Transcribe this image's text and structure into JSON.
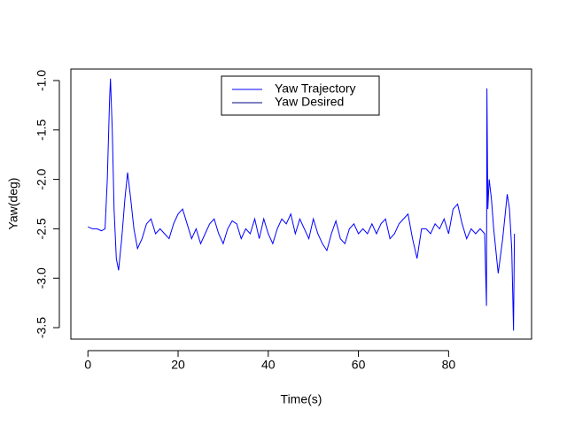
{
  "chart_data": {
    "type": "line",
    "x_label": "Time(s)",
    "y_label": "Yaw(deg)",
    "x": [
      0,
      1,
      2,
      3,
      3.8,
      4.3,
      4.8,
      5.0,
      5.4,
      5.8,
      6.3,
      6.8,
      7.5,
      8.2,
      8.8,
      9.5,
      10.2,
      11,
      12,
      13,
      14,
      15,
      16,
      17,
      18,
      19,
      20,
      21,
      22,
      23,
      24,
      25,
      26,
      27,
      28,
      29,
      30,
      31,
      32,
      33,
      34,
      35,
      36,
      37,
      38,
      39,
      40,
      41,
      42,
      43,
      44,
      45,
      46,
      47,
      48,
      49,
      50,
      51,
      52,
      53,
      54,
      55,
      56,
      57,
      58,
      59,
      60,
      61,
      62,
      63,
      64,
      65,
      66,
      67,
      68,
      69,
      70,
      71,
      72,
      73,
      74,
      75,
      76,
      77,
      78,
      79,
      80,
      81,
      82,
      83,
      84,
      85,
      86,
      87,
      88,
      88.4,
      88.5,
      88.7,
      89,
      89.5,
      90,
      91,
      92,
      93,
      93.5,
      94,
      94.4,
      94.6
    ],
    "series": [
      {
        "name": "Yaw Trajectory",
        "color": "#0000ff",
        "values": [
          -2.48,
          -2.5,
          -2.5,
          -2.52,
          -2.5,
          -2.0,
          -1.2,
          -0.98,
          -1.5,
          -2.3,
          -2.8,
          -2.92,
          -2.6,
          -2.2,
          -1.93,
          -2.2,
          -2.5,
          -2.7,
          -2.6,
          -2.45,
          -2.4,
          -2.55,
          -2.5,
          -2.55,
          -2.6,
          -2.45,
          -2.35,
          -2.3,
          -2.45,
          -2.6,
          -2.5,
          -2.65,
          -2.55,
          -2.45,
          -2.4,
          -2.55,
          -2.65,
          -2.5,
          -2.42,
          -2.45,
          -2.6,
          -2.5,
          -2.55,
          -2.4,
          -2.6,
          -2.4,
          -2.55,
          -2.65,
          -2.5,
          -2.4,
          -2.45,
          -2.35,
          -2.55,
          -2.4,
          -2.5,
          -2.6,
          -2.4,
          -2.55,
          -2.65,
          -2.72,
          -2.55,
          -2.42,
          -2.6,
          -2.65,
          -2.5,
          -2.45,
          -2.55,
          -2.5,
          -2.55,
          -2.45,
          -2.55,
          -2.45,
          -2.4,
          -2.6,
          -2.55,
          -2.45,
          -2.4,
          -2.35,
          -2.6,
          -2.8,
          -2.5,
          -2.5,
          -2.55,
          -2.45,
          -2.5,
          -2.4,
          -2.55,
          -2.3,
          -2.25,
          -2.45,
          -2.6,
          -2.5,
          -2.55,
          -2.5,
          -2.55,
          -3.28,
          -1.08,
          -2.3,
          -2.0,
          -2.2,
          -2.5,
          -2.95,
          -2.6,
          -2.15,
          -2.3,
          -2.7,
          -3.53,
          -2.55
        ]
      },
      {
        "name": "Yaw Desired",
        "color": "#000080"
      }
    ],
    "xlim": [
      -3.78,
      98.4
    ],
    "xticks": [
      0,
      20,
      40,
      60,
      80
    ],
    "ylim": [
      -3.616,
      -0.884
    ],
    "yticks": [
      {
        "value": -1,
        "label": "-1.0"
      },
      -1.5,
      {
        "value": -2,
        "label": "-2.0"
      },
      -2.5,
      {
        "value": -3,
        "label": "-3.0"
      },
      -3.5
    ],
    "legend": "top"
  }
}
